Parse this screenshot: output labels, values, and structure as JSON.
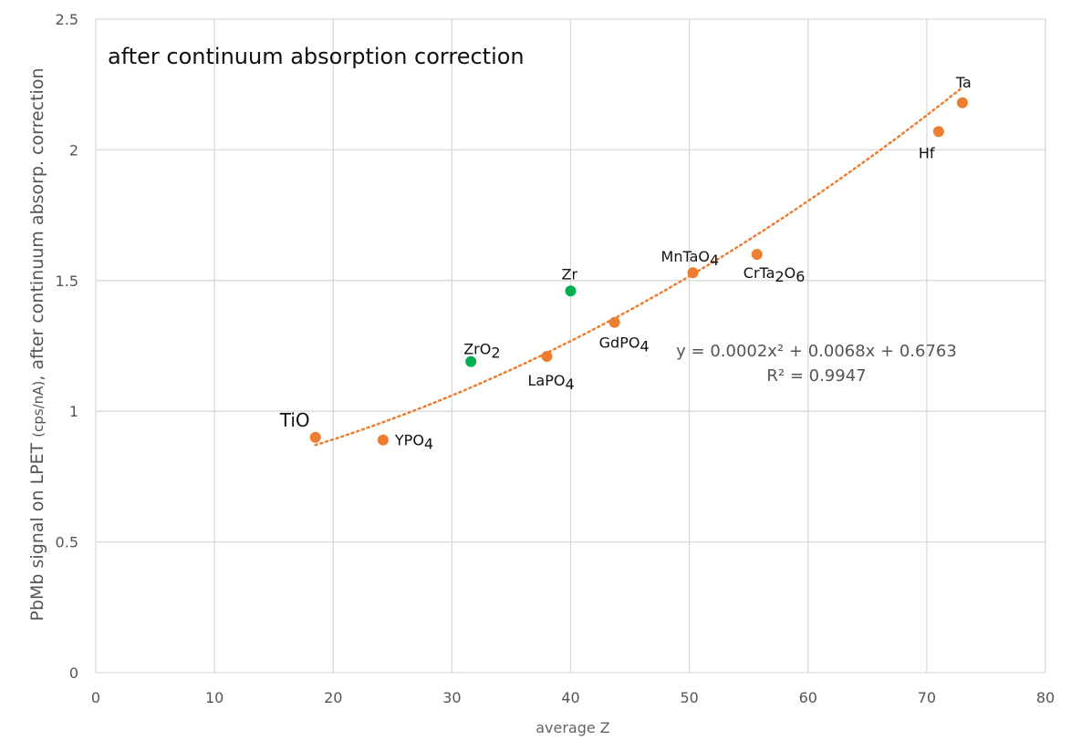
{
  "chart_data": {
    "type": "scatter",
    "title": "after continuum absorption correction",
    "xlabel": "average Z",
    "ylabel": {
      "pre": "PbMb signal on LPET ",
      "unit": "(cps/nA)",
      "post": ", after continuum absorp. correction"
    },
    "xlim": [
      0,
      80
    ],
    "ylim": [
      0,
      2.5
    ],
    "xticks": [
      "0",
      "10",
      "20",
      "30",
      "40",
      "50",
      "60",
      "70",
      "80"
    ],
    "yticks": [
      "0",
      "0.5",
      "1",
      "1.5",
      "2",
      "2.5"
    ],
    "grid": true,
    "series": [
      {
        "name": "orange",
        "color": "#ED7D31",
        "points": [
          {
            "x": 18.5,
            "y": 0.9,
            "label": "TiO",
            "sub": ""
          },
          {
            "x": 24.2,
            "y": 0.89,
            "label": "YPO",
            "sub": "4"
          },
          {
            "x": 38.0,
            "y": 1.21,
            "label": "LaPO",
            "sub": "4"
          },
          {
            "x": 43.7,
            "y": 1.34,
            "label": "GdPO",
            "sub": "4"
          },
          {
            "x": 50.3,
            "y": 1.53,
            "label": "MnTaO",
            "sub": "4"
          },
          {
            "x": 55.7,
            "y": 1.6,
            "label": "CrTa",
            "sub": "2",
            "tail": "O",
            "sub2": "6"
          },
          {
            "x": 71.0,
            "y": 2.07,
            "label": "Hf",
            "sub": ""
          },
          {
            "x": 73.0,
            "y": 2.18,
            "label": "Ta",
            "sub": ""
          }
        ]
      },
      {
        "name": "green",
        "color": "#00B050",
        "points": [
          {
            "x": 31.6,
            "y": 1.19,
            "label": "ZrO",
            "sub": "2"
          },
          {
            "x": 40.0,
            "y": 1.46,
            "label": "Zr",
            "sub": ""
          }
        ]
      }
    ],
    "trendline": {
      "type": "polynomial",
      "a": 0.0002,
      "b": 0.0068,
      "c": 0.6763,
      "x_range": [
        18.5,
        73
      ],
      "color": "#ED7D31",
      "equation": "y = 0.0002x² + 0.0068x + 0.6763",
      "r2": "R² = 0.9947"
    }
  }
}
